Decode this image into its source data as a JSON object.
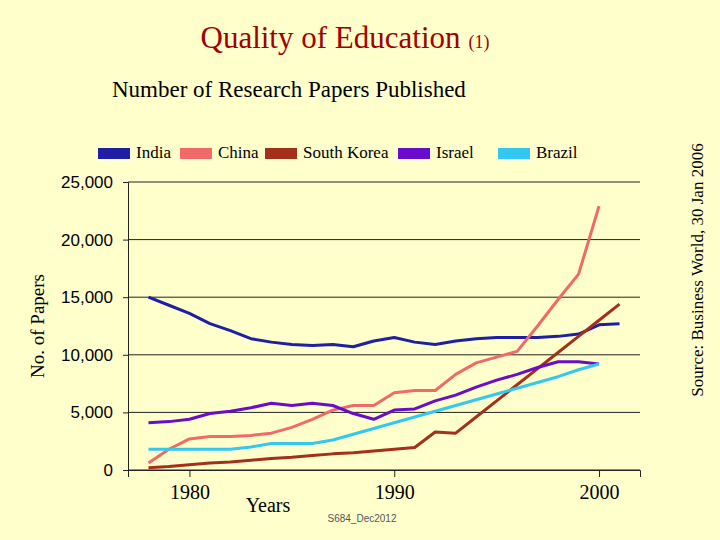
{
  "chart_data": {
    "type": "line",
    "title": "Quality of Education",
    "title_suffix": "(1)",
    "subtitle": "Number of Research Papers Published",
    "source": "Source: Business World, 30 Jan 2006",
    "footer": "S684_Dec2012",
    "x_label": "Years",
    "y_label": "No. of Papers",
    "x": [
      1978,
      1979,
      1980,
      1981,
      1982,
      1983,
      1984,
      1985,
      1986,
      1987,
      1988,
      1989,
      1990,
      1991,
      1992,
      1993,
      1994,
      1995,
      1996,
      1997,
      1998,
      1999,
      2000,
      2001
    ],
    "series": [
      {
        "name": "India",
        "color": "#1f1fa6",
        "values": [
          15000,
          14300,
          13600,
          12700,
          12100,
          11400,
          11100,
          10900,
          10800,
          10900,
          10700,
          11200,
          11500,
          11100,
          10900,
          11200,
          11400,
          11500,
          11500,
          11500,
          11600,
          11800,
          12600,
          12700
        ]
      },
      {
        "name": "China",
        "color": "#f06a6a",
        "values": [
          600,
          1800,
          2700,
          2900,
          2900,
          3000,
          3200,
          3700,
          4400,
          5200,
          5600,
          5600,
          6700,
          6900,
          6900,
          8300,
          9300,
          9800,
          10300,
          12500,
          14800,
          17000,
          22900,
          null
        ]
      },
      {
        "name": "South Korea",
        "color": "#a3301a",
        "values": [
          200,
          300,
          450,
          600,
          700,
          850,
          1000,
          1100,
          1250,
          1400,
          1500,
          1650,
          1800,
          1950,
          3300,
          3200,
          4600,
          6000,
          7400,
          8800,
          10200,
          11600,
          13000,
          14400
        ]
      },
      {
        "name": "Israel",
        "color": "#6a0ccc",
        "values": [
          4100,
          4200,
          4400,
          4900,
          5100,
          5400,
          5800,
          5600,
          5800,
          5600,
          4900,
          4400,
          5200,
          5300,
          6000,
          6500,
          7200,
          7800,
          8300,
          8900,
          9400,
          9400,
          9200,
          null
        ]
      },
      {
        "name": "Brazil",
        "color": "#33c8f0",
        "values": [
          1800,
          1800,
          1800,
          1800,
          1800,
          2000,
          2300,
          2300,
          2300,
          2600,
          3100,
          3600,
          4100,
          4600,
          5100,
          5600,
          6100,
          6600,
          7100,
          7600,
          8100,
          8700,
          9200,
          null
        ]
      }
    ],
    "xlim": [
      1977,
      2002
    ],
    "xticks": [
      1980,
      1990,
      2000
    ],
    "ylim": [
      0,
      25000
    ],
    "yticks": [
      0,
      {
        "value": 5000,
        "label": "5,000"
      },
      {
        "value": 10000,
        "label": "10,000"
      },
      {
        "value": 15000,
        "label": "15,000"
      },
      {
        "value": 20000,
        "label": "20,000"
      },
      {
        "value": 25000,
        "label": "25,000"
      }
    ],
    "grid": true,
    "legend": "top"
  }
}
